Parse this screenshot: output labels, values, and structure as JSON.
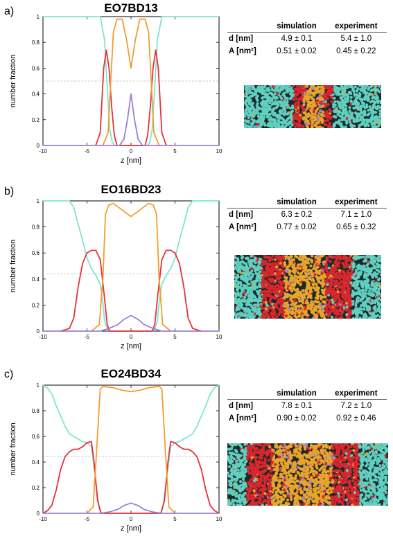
{
  "panels": [
    {
      "letter": "a)",
      "title": "EO7BD13",
      "table": {
        "headers": [
          "",
          "simulation",
          "experiment"
        ],
        "rows": [
          {
            "label": "d [nm]",
            "simulation": "4.9 ± 0.1",
            "experiment": "5.4 ± 1.0"
          },
          {
            "label": "A [nm²]",
            "simulation": "0.51 ± 0.02",
            "experiment": "0.45 ± 0.22"
          }
        ]
      },
      "chart_data": {
        "type": "line",
        "xlabel": "z [nm]",
        "ylabel": "number fraction",
        "xlim": [
          -10,
          10
        ],
        "ylim": [
          0,
          1
        ],
        "xticks": [
          "-10",
          "-5",
          "0",
          "5",
          "10"
        ],
        "yticks": [
          "0",
          "0.2",
          "0.4",
          "0.6",
          "0.8",
          "1"
        ],
        "reference_line_y": 0.5,
        "series": [
          {
            "color": "#7fe5d0",
            "x": [
              -10,
              -3.5,
              -3.0,
              -2.7,
              -2.4,
              -2.1,
              -1.9,
              0,
              1.9,
              2.1,
              2.4,
              2.7,
              3.0,
              3.5,
              10
            ],
            "y": [
              1,
              1,
              0.82,
              0.45,
              0.12,
              0.02,
              0,
              0,
              0,
              0.02,
              0.12,
              0.45,
              0.82,
              1,
              1
            ]
          },
          {
            "color": "#e8303a",
            "x": [
              -4.0,
              -3.5,
              -3.1,
              -2.8,
              -2.5,
              -2.2,
              -1.9,
              -1.6,
              1.6,
              1.9,
              2.2,
              2.5,
              2.8,
              3.1,
              3.5,
              4.0
            ],
            "y": [
              0,
              0.1,
              0.6,
              0.74,
              0.6,
              0.3,
              0.08,
              0,
              0,
              0.08,
              0.3,
              0.6,
              0.74,
              0.6,
              0.1,
              0
            ]
          },
          {
            "color": "#f39c2e",
            "x": [
              -3.2,
              -2.6,
              -2.3,
              -2.0,
              -1.6,
              -1.0,
              -0.5,
              0,
              0.5,
              1.0,
              1.6,
              2.0,
              2.3,
              2.6,
              3.2
            ],
            "y": [
              0,
              0.1,
              0.5,
              0.88,
              0.98,
              0.98,
              0.82,
              0.6,
              0.82,
              0.98,
              0.98,
              0.88,
              0.5,
              0.1,
              0
            ]
          },
          {
            "color": "#9b7fd1",
            "x": [
              -10,
              -1.3,
              -0.8,
              -0.4,
              0,
              0.4,
              0.8,
              1.3,
              10
            ],
            "y": [
              0,
              0,
              0.05,
              0.2,
              0.4,
              0.2,
              0.05,
              0,
              0
            ]
          }
        ]
      }
    },
    {
      "letter": "b)",
      "title": "EO16BD23",
      "table": {
        "headers": [
          "",
          "simulation",
          "experiment"
        ],
        "rows": [
          {
            "label": "d [nm]",
            "simulation": "6.3 ± 0.2",
            "experiment": "7.1 ± 1.0"
          },
          {
            "label": "A [nm²]",
            "simulation": "0.77 ± 0.02",
            "experiment": "0.65 ± 0.32"
          }
        ]
      },
      "chart_data": {
        "type": "line",
        "xlabel": "z [nm]",
        "ylabel": "number fraction",
        "xlim": [
          -10,
          10
        ],
        "ylim": [
          0,
          1
        ],
        "xticks": [
          "-10",
          "-5",
          "0",
          "5",
          "10"
        ],
        "yticks": [
          "0",
          "0.2",
          "0.4",
          "0.6",
          "0.8",
          "1"
        ],
        "reference_line_y": 0.44,
        "series": [
          {
            "color": "#7fe5d0",
            "x": [
              -10,
              -7,
              -6.5,
              -6,
              -5.5,
              -5,
              -4.5,
              -4,
              -3.5,
              -3.2,
              -3.0,
              -2.7,
              -2.4,
              2.4,
              2.7,
              3.0,
              3.2,
              3.5,
              4,
              4.5,
              5,
              5.5,
              6,
              6.5,
              7,
              10
            ],
            "y": [
              1,
              1,
              0.95,
              0.82,
              0.7,
              0.56,
              0.48,
              0.43,
              0.36,
              0.22,
              0.08,
              0.02,
              0,
              0,
              0.02,
              0.08,
              0.22,
              0.36,
              0.43,
              0.48,
              0.56,
              0.7,
              0.82,
              0.95,
              1,
              1
            ]
          },
          {
            "color": "#e8303a",
            "x": [
              -8,
              -7,
              -6.5,
              -6,
              -5.5,
              -5,
              -4.5,
              -4,
              -3.5,
              -3.0,
              -2.7,
              -2.4,
              2.4,
              2.7,
              3.0,
              3.5,
              4,
              4.5,
              5,
              5.5,
              6,
              6.5,
              7,
              8
            ],
            "y": [
              0,
              0.02,
              0.1,
              0.34,
              0.52,
              0.6,
              0.62,
              0.62,
              0.55,
              0.25,
              0.05,
              0,
              0,
              0.05,
              0.25,
              0.55,
              0.62,
              0.62,
              0.6,
              0.52,
              0.34,
              0.1,
              0.02,
              0
            ]
          },
          {
            "color": "#f39c2e",
            "x": [
              -4.5,
              -3.6,
              -3.2,
              -2.9,
              -2.5,
              -2,
              -1,
              0,
              1,
              2,
              2.5,
              2.9,
              3.2,
              3.6,
              4.5
            ],
            "y": [
              0,
              0.05,
              0.4,
              0.9,
              0.97,
              0.98,
              0.93,
              0.88,
              0.93,
              0.98,
              0.97,
              0.9,
              0.4,
              0.05,
              0
            ]
          },
          {
            "color": "#9b7fd1",
            "x": [
              -10,
              -3.5,
              -2.5,
              -1.5,
              -0.8,
              0,
              0.8,
              1.5,
              2.5,
              3.5,
              10
            ],
            "y": [
              0,
              0,
              0.02,
              0.05,
              0.09,
              0.12,
              0.09,
              0.05,
              0.02,
              0,
              0
            ]
          }
        ]
      }
    },
    {
      "letter": "c)",
      "title": "EO24BD34",
      "table": {
        "headers": [
          "",
          "simulation",
          "experiment"
        ],
        "rows": [
          {
            "label": "d [nm]",
            "simulation": "7.8 ± 0.1",
            "experiment": "7.2 ± 1.0"
          },
          {
            "label": "A [nm²]",
            "simulation": "0.90 ± 0.02",
            "experiment": "0.92 ± 0.46"
          }
        ]
      },
      "chart_data": {
        "type": "line",
        "xlabel": "z [nm]",
        "ylabel": "number fraction",
        "xlim": [
          -10,
          10
        ],
        "ylim": [
          0,
          1
        ],
        "xticks": [
          "-10",
          "-5",
          "0",
          "5",
          "10"
        ],
        "yticks": [
          "0",
          "0.2",
          "0.4",
          "0.6",
          "0.8",
          "1"
        ],
        "reference_line_y": 0.44,
        "series": [
          {
            "color": "#7fe5d0",
            "x": [
              -10,
              -9.5,
              -9,
              -8.5,
              -8,
              -7.5,
              -7,
              -6.5,
              -6,
              -5.5,
              -5,
              -4.5,
              -4.0,
              -3.6,
              -3.3,
              3.3,
              3.6,
              4.0,
              4.5,
              5,
              5.5,
              6,
              6.5,
              7,
              7.5,
              8,
              8.5,
              9,
              9.5,
              10
            ],
            "y": [
              1,
              0.98,
              0.93,
              0.84,
              0.76,
              0.68,
              0.62,
              0.6,
              0.58,
              0.56,
              0.55,
              0.52,
              0.25,
              0.03,
              0,
              0,
              0.03,
              0.25,
              0.52,
              0.55,
              0.56,
              0.58,
              0.6,
              0.62,
              0.68,
              0.76,
              0.84,
              0.93,
              0.98,
              1
            ]
          },
          {
            "color": "#e8303a",
            "x": [
              -10,
              -9.5,
              -9,
              -8.5,
              -8,
              -7.5,
              -7,
              -6.5,
              -6,
              -5.5,
              -5,
              -4.5,
              -4.2,
              -3.8,
              -3.4,
              3.4,
              3.8,
              4.2,
              4.5,
              5,
              5.5,
              6,
              6.5,
              7,
              7.5,
              8,
              8.5,
              9,
              9.5,
              10
            ],
            "y": [
              0,
              0.02,
              0.06,
              0.18,
              0.34,
              0.44,
              0.48,
              0.5,
              0.5,
              0.52,
              0.55,
              0.56,
              0.4,
              0.1,
              0,
              0,
              0.1,
              0.4,
              0.56,
              0.55,
              0.52,
              0.5,
              0.5,
              0.48,
              0.44,
              0.34,
              0.18,
              0.06,
              0.02,
              0
            ]
          },
          {
            "color": "#f39c2e",
            "x": [
              -5,
              -4.3,
              -3.9,
              -3.5,
              -3.2,
              -2,
              -1,
              0,
              1,
              2,
              3.2,
              3.5,
              3.9,
              4.3,
              5
            ],
            "y": [
              0,
              0.05,
              0.5,
              0.97,
              0.99,
              0.98,
              0.96,
              0.95,
              0.96,
              0.98,
              0.99,
              0.97,
              0.5,
              0.05,
              0
            ]
          },
          {
            "color": "#9b7fd1",
            "x": [
              -10,
              -3.5,
              -2.5,
              -1.5,
              -0.8,
              0,
              0.8,
              1.5,
              2.5,
              3.5,
              10
            ],
            "y": [
              0,
              0,
              0.01,
              0.03,
              0.06,
              0.08,
              0.06,
              0.03,
              0.01,
              0,
              0
            ]
          }
        ]
      }
    }
  ],
  "colors": {
    "water": "#5fcfc0",
    "eo": "#d8262e",
    "bd": "#e8a52a",
    "bd_core": "#9b7fd1",
    "axis": "#000000",
    "refline": "#bbbbbb"
  }
}
